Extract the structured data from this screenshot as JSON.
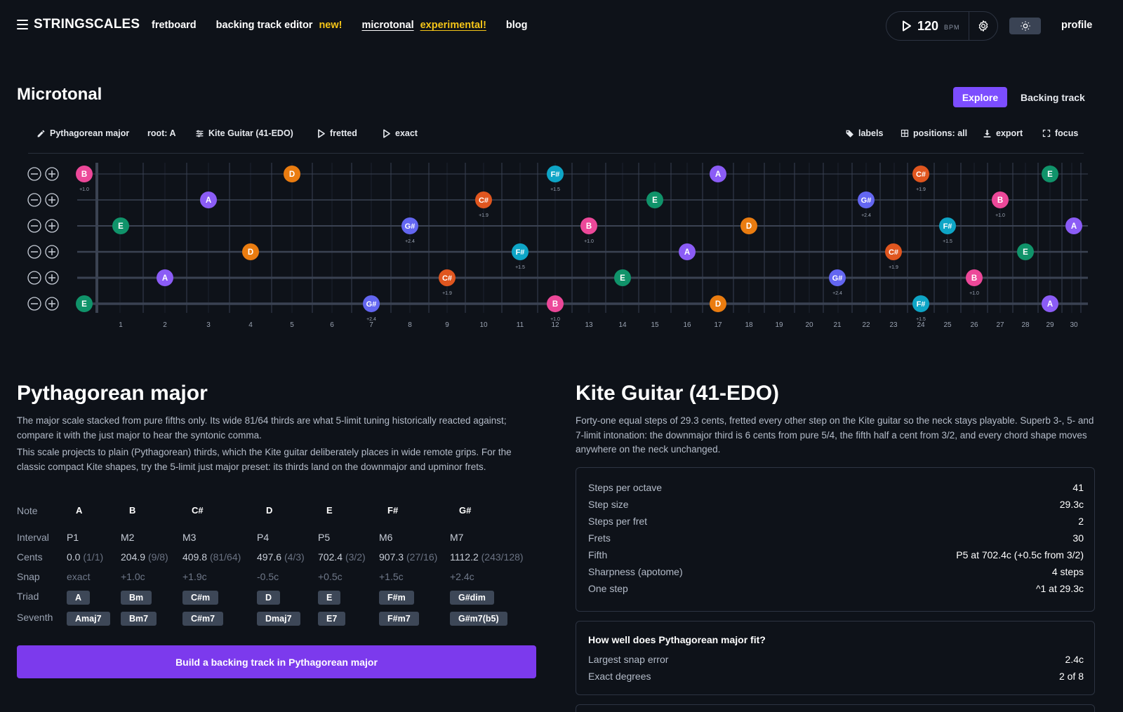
{
  "header": {
    "brand": "STRINGSCALES",
    "nav": {
      "fretboard": "fretboard",
      "backing_track_editor": "backing track editor",
      "backing_badge": "new!",
      "microtonal": "microtonal",
      "microtonal_badge": "experimental!",
      "blog": "blog"
    },
    "tempo": {
      "bpm": "120",
      "unit": "BPM"
    },
    "profile": "profile"
  },
  "page": {
    "title": "Microtonal",
    "tabs": {
      "explore": "Explore",
      "backing_track": "Backing track"
    }
  },
  "toolbar": {
    "scale": "Pythagorean major",
    "root": "root: A",
    "tuning": "Kite Guitar (41-EDO)",
    "fretted": "fretted",
    "exact": "exact",
    "labels": "labels",
    "positions": "positions: all",
    "export": "export",
    "focus": "focus"
  },
  "fretboard": {
    "frets": [
      "1",
      "2",
      "3",
      "4",
      "5",
      "6",
      "7",
      "8",
      "9",
      "10",
      "11",
      "12",
      "13",
      "14",
      "15",
      "16",
      "17",
      "18",
      "19",
      "20",
      "21",
      "22",
      "23",
      "24",
      "25",
      "26",
      "27",
      "28",
      "29",
      "30"
    ],
    "note_colors": {
      "A": "#8b5cf6",
      "B": "#ec4899",
      "C#": "#e0561f",
      "D": "#ea7c10",
      "E": "#10936a",
      "F#": "#0ea5c6",
      "G#": "#6366f1"
    },
    "strings": [
      {
        "notes": [
          {
            "fret": 0,
            "note": "B",
            "dev": "+1.0"
          },
          {
            "fret": 5,
            "note": "D",
            "dev": ""
          },
          {
            "fret": 12,
            "note": "F#",
            "dev": "+1.5"
          },
          {
            "fret": 17,
            "note": "A",
            "dev": ""
          },
          {
            "fret": 24,
            "note": "C#",
            "dev": "+1.9"
          },
          {
            "fret": 29,
            "note": "E",
            "dev": ""
          }
        ]
      },
      {
        "notes": [
          {
            "fret": 3,
            "note": "A",
            "dev": ""
          },
          {
            "fret": 10,
            "note": "C#",
            "dev": "+1.9"
          },
          {
            "fret": 15,
            "note": "E",
            "dev": ""
          },
          {
            "fret": 22,
            "note": "G#",
            "dev": "+2.4"
          },
          {
            "fret": 27,
            "note": "B",
            "dev": "+1.0"
          }
        ]
      },
      {
        "notes": [
          {
            "fret": 1,
            "note": "E",
            "dev": ""
          },
          {
            "fret": 8,
            "note": "G#",
            "dev": "+2.4"
          },
          {
            "fret": 13,
            "note": "B",
            "dev": "+1.0"
          },
          {
            "fret": 18,
            "note": "D",
            "dev": ""
          },
          {
            "fret": 25,
            "note": "F#",
            "dev": "+1.5"
          },
          {
            "fret": 30,
            "note": "A",
            "dev": ""
          }
        ]
      },
      {
        "notes": [
          {
            "fret": 4,
            "note": "D",
            "dev": ""
          },
          {
            "fret": 11,
            "note": "F#",
            "dev": "+1.5"
          },
          {
            "fret": 16,
            "note": "A",
            "dev": ""
          },
          {
            "fret": 23,
            "note": "C#",
            "dev": "+1.9"
          },
          {
            "fret": 28,
            "note": "E",
            "dev": ""
          }
        ]
      },
      {
        "notes": [
          {
            "fret": 2,
            "note": "A",
            "dev": ""
          },
          {
            "fret": 9,
            "note": "C#",
            "dev": "+1.9"
          },
          {
            "fret": 14,
            "note": "E",
            "dev": ""
          },
          {
            "fret": 21,
            "note": "G#",
            "dev": "+2.4"
          },
          {
            "fret": 26,
            "note": "B",
            "dev": "+1.0"
          }
        ]
      },
      {
        "notes": [
          {
            "fret": 0,
            "note": "E",
            "dev": ""
          },
          {
            "fret": 7,
            "note": "G#",
            "dev": "+2.4"
          },
          {
            "fret": 12,
            "note": "B",
            "dev": "+1.0"
          },
          {
            "fret": 17,
            "note": "D",
            "dev": ""
          },
          {
            "fret": 24,
            "note": "F#",
            "dev": "+1.5"
          },
          {
            "fret": 29,
            "note": "A",
            "dev": ""
          }
        ]
      }
    ]
  },
  "scale": {
    "title": "Pythagorean major",
    "desc1": "The major scale stacked from pure fifths only. Its wide 81/64 thirds are what 5-limit tuning historically reacted against; compare it with the just major to hear the syntonic comma.",
    "desc2": "This scale projects to plain (Pythagorean) thirds, which the Kite guitar deliberately places in wide remote grips. For the classic compact Kite shapes, try the 5-limit just major preset: its thirds land on the downmajor and upminor frets.",
    "row_labels": {
      "note": "Note",
      "interval": "Interval",
      "cents": "Cents",
      "snap": "Snap",
      "triad": "Triad",
      "seventh": "Seventh"
    },
    "degrees": [
      {
        "note": "A",
        "interval": "P1",
        "cents": "0.0",
        "ratio": "(1/1)",
        "snap": "exact",
        "triad": "A",
        "seventh": "Amaj7"
      },
      {
        "note": "B",
        "interval": "M2",
        "cents": "204.9",
        "ratio": "(9/8)",
        "snap": "+1.0c",
        "triad": "Bm",
        "seventh": "Bm7"
      },
      {
        "note": "C#",
        "interval": "M3",
        "cents": "409.8",
        "ratio": "(81/64)",
        "snap": "+1.9c",
        "triad": "C#m",
        "seventh": "C#m7"
      },
      {
        "note": "D",
        "interval": "P4",
        "cents": "497.6",
        "ratio": "(4/3)",
        "snap": "-0.5c",
        "triad": "D",
        "seventh": "Dmaj7"
      },
      {
        "note": "E",
        "interval": "P5",
        "cents": "702.4",
        "ratio": "(3/2)",
        "snap": "+0.5c",
        "triad": "E",
        "seventh": "E7"
      },
      {
        "note": "F#",
        "interval": "M6",
        "cents": "907.3",
        "ratio": "(27/16)",
        "snap": "+1.5c",
        "triad": "F#m",
        "seventh": "F#m7"
      },
      {
        "note": "G#",
        "interval": "M7",
        "cents": "1112.2",
        "ratio": "(243/128)",
        "snap": "+2.4c",
        "triad": "G#dim",
        "seventh": "G#m7(b5)"
      }
    ],
    "build_button": "Build a backing track in Pythagorean major"
  },
  "tuning": {
    "title": "Kite Guitar (41-EDO)",
    "desc": "Forty-one equal steps of 29.3 cents, fretted every other step on the Kite guitar so the neck stays playable. Superb 3-, 5- and 7-limit intonation: the downmajor third is 6 cents from pure 5/4, the fifth half a cent from 3/2, and every chord shape moves anywhere on the neck unchanged.",
    "stats": [
      {
        "k": "Steps per octave",
        "v": "41"
      },
      {
        "k": "Step size",
        "v": "29.3c"
      },
      {
        "k": "Steps per fret",
        "v": "2"
      },
      {
        "k": "Frets",
        "v": "30"
      },
      {
        "k": "Fifth",
        "v": "P5 at 702.4c (+0.5c from 3/2)"
      },
      {
        "k": "Sharpness (apotome)",
        "v": "4 steps"
      },
      {
        "k": "One step",
        "v": "^1 at 29.3c"
      }
    ],
    "fit": {
      "title": "How well does Pythagorean major fit?",
      "rows": [
        {
          "k": "Largest snap error",
          "v": "2.4c"
        },
        {
          "k": "Exact degrees",
          "v": "2 of 8"
        }
      ]
    }
  }
}
